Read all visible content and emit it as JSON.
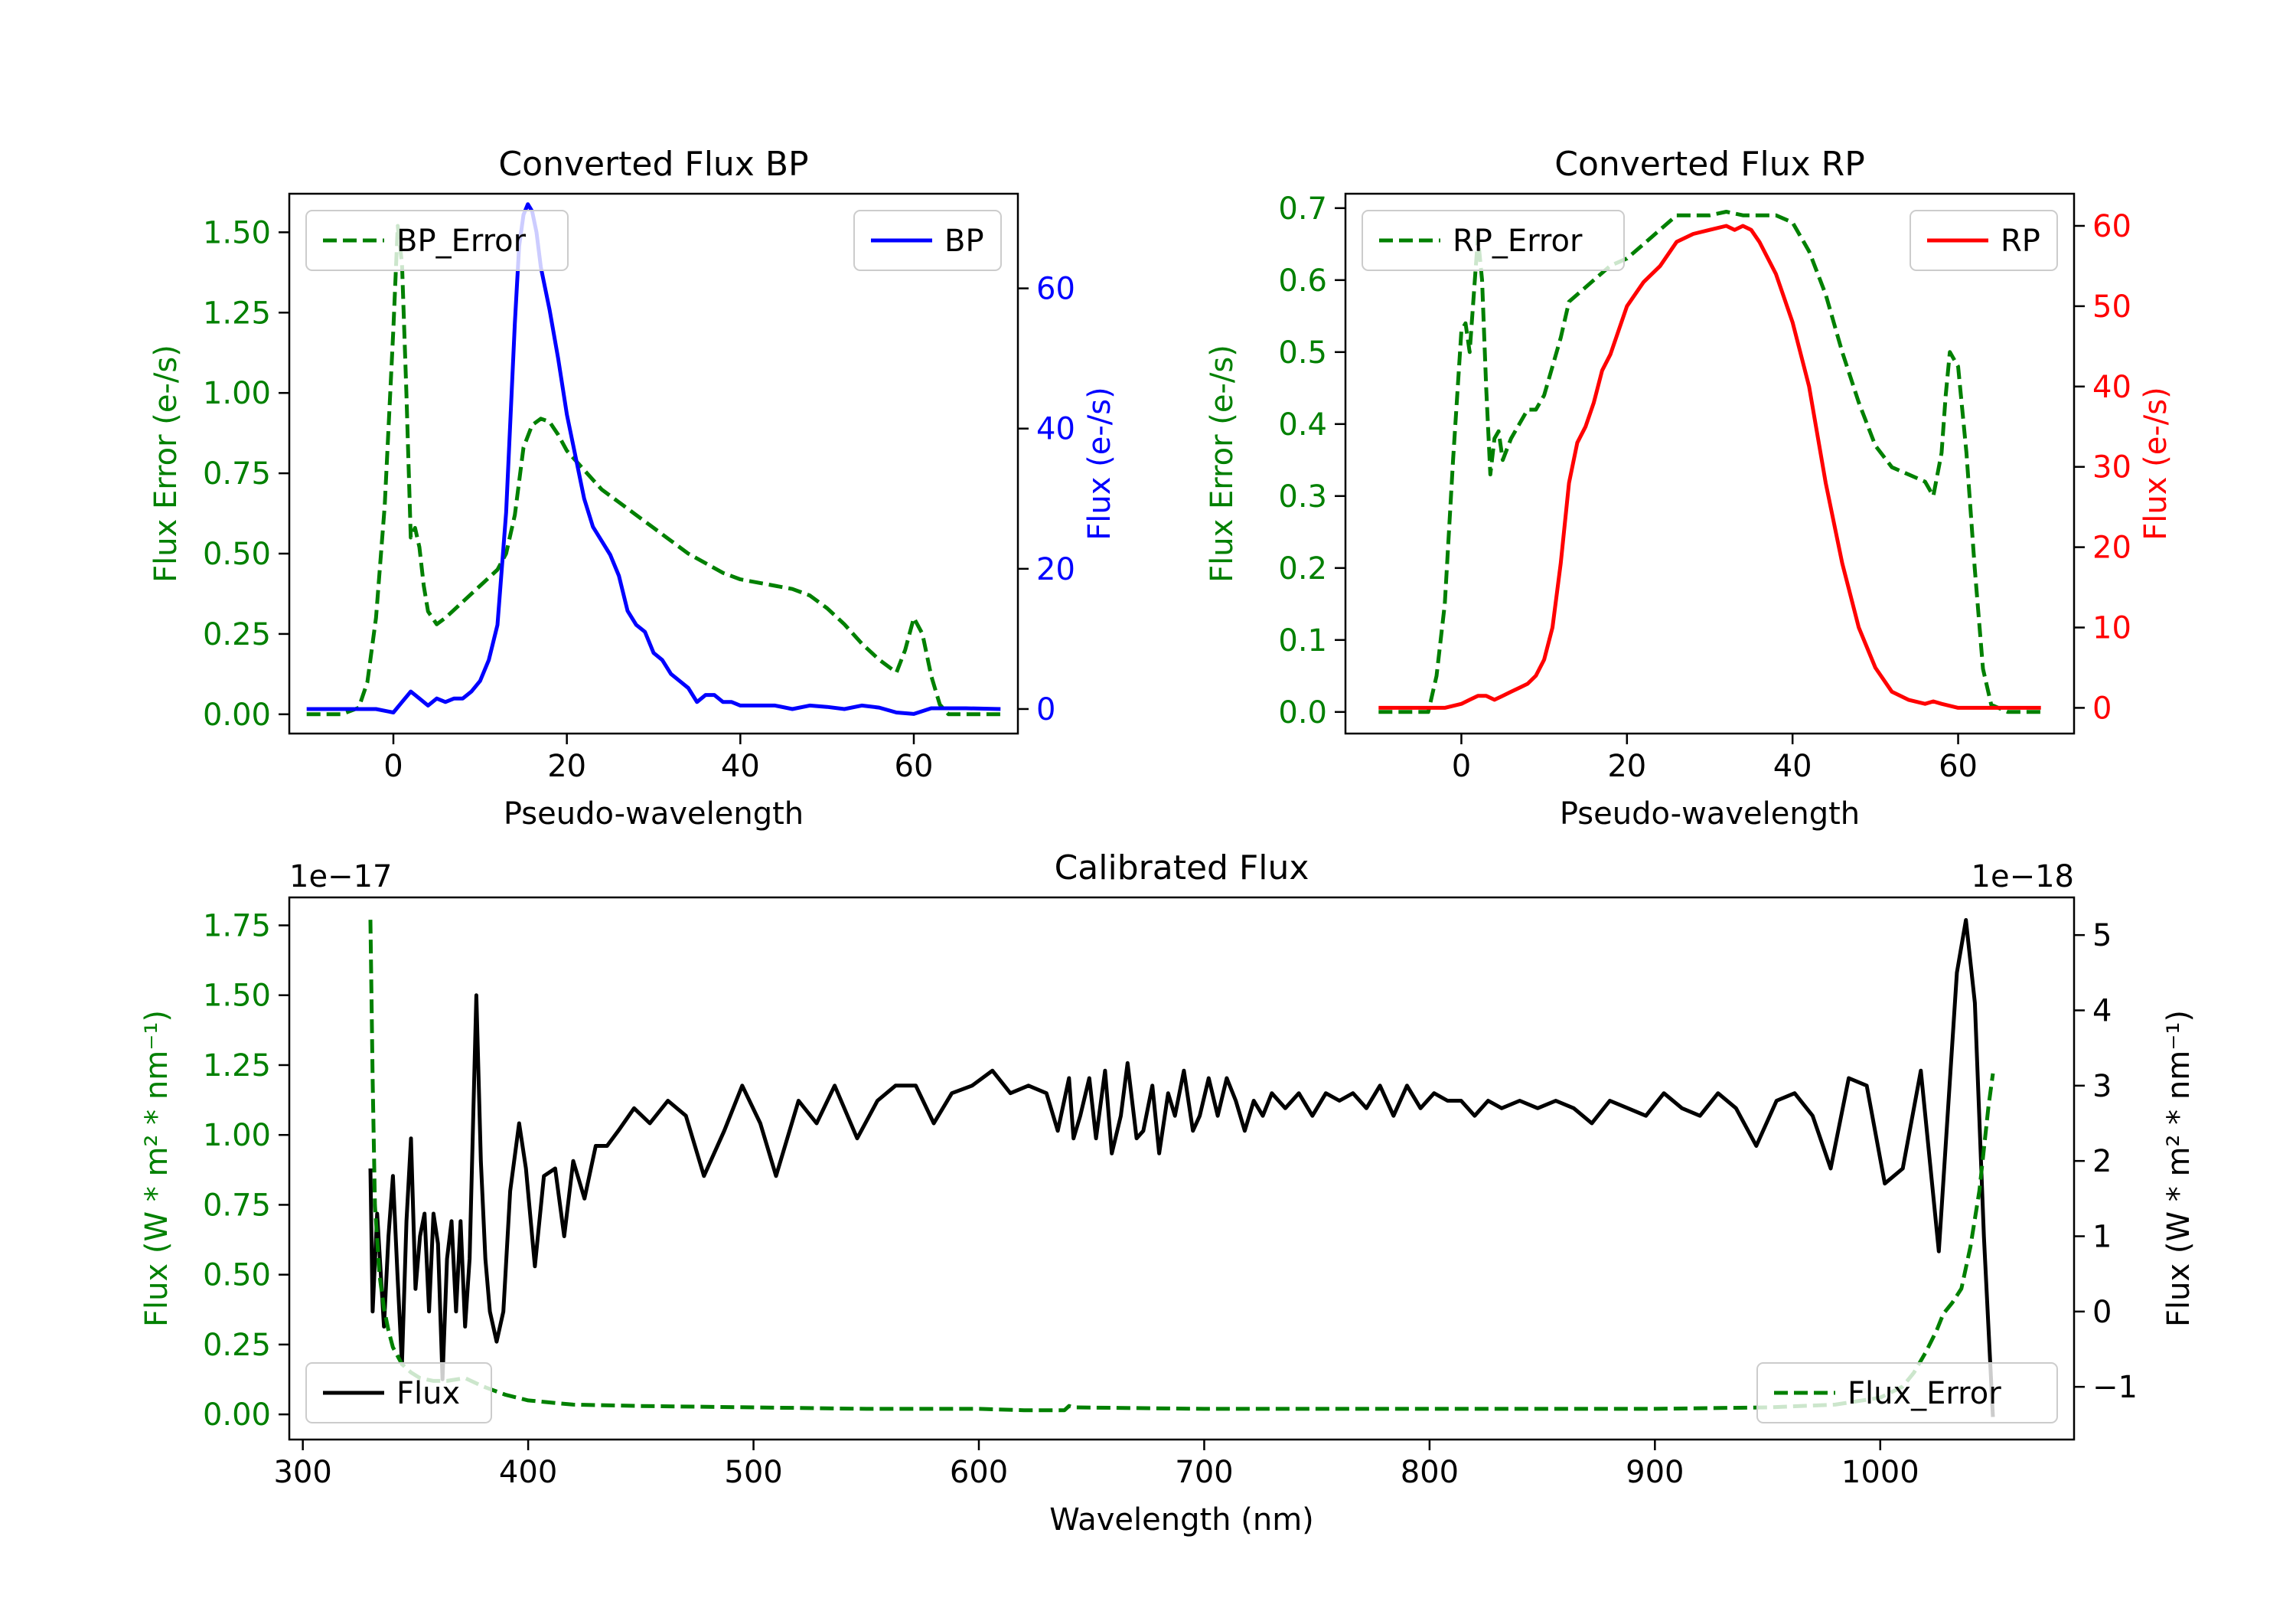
{
  "chart_data": [
    {
      "id": "bp",
      "type": "line",
      "title": "Converted Flux BP",
      "xlabel": "Pseudo-wavelength",
      "ylabel_left": "Flux Error (e-/s)",
      "ylabel_right": "Flux (e-/s)",
      "xlim": [
        -12,
        72
      ],
      "ylim_left": [
        -0.06,
        1.62
      ],
      "ylim_right": [
        -3.5,
        73.5
      ],
      "xticks": [
        0,
        20,
        40,
        60
      ],
      "yticks_left": [
        "0.00",
        "0.25",
        "0.50",
        "0.75",
        "1.00",
        "1.25",
        "1.50"
      ],
      "yticks_right": [
        0,
        20,
        40,
        60
      ],
      "colors": {
        "left": "#008000",
        "right": "#0000ff"
      },
      "series": [
        {
          "name": "BP_Error",
          "axis": "left",
          "color": "#008000",
          "style": "dashed",
          "x": [
            -10,
            -6,
            -4,
            -3,
            -2,
            -1,
            0,
            0.5,
            1,
            1.5,
            2,
            2.5,
            3,
            3.5,
            4,
            5,
            6,
            8,
            10,
            12,
            13,
            14,
            15,
            16,
            17,
            18,
            19,
            20,
            22,
            24,
            26,
            28,
            30,
            32,
            34,
            36,
            38,
            40,
            42,
            44,
            46,
            48,
            50,
            52,
            54,
            56,
            58,
            59,
            60,
            61,
            62,
            63,
            64,
            66,
            70
          ],
          "values": [
            0.0,
            0.0,
            0.02,
            0.1,
            0.3,
            0.65,
            1.2,
            1.52,
            1.4,
            1.0,
            0.55,
            0.58,
            0.52,
            0.4,
            0.32,
            0.28,
            0.3,
            0.35,
            0.4,
            0.45,
            0.5,
            0.62,
            0.83,
            0.9,
            0.92,
            0.91,
            0.87,
            0.82,
            0.76,
            0.7,
            0.66,
            0.62,
            0.58,
            0.54,
            0.5,
            0.47,
            0.44,
            0.42,
            0.41,
            0.4,
            0.39,
            0.37,
            0.33,
            0.28,
            0.22,
            0.17,
            0.13,
            0.2,
            0.3,
            0.25,
            0.12,
            0.03,
            0.0,
            0.0,
            0.0
          ]
        },
        {
          "name": "BP",
          "axis": "right",
          "color": "#0000ff",
          "style": "solid",
          "x": [
            -10,
            -4,
            -2,
            0,
            1,
            2,
            3,
            4,
            5,
            6,
            7,
            8,
            9,
            10,
            11,
            12,
            13,
            14,
            14.5,
            15,
            15.5,
            16,
            16.5,
            17,
            18,
            19,
            20,
            21,
            22,
            23,
            24,
            25,
            26,
            27,
            28,
            29,
            30,
            31,
            32,
            33,
            34,
            35,
            36,
            37,
            38,
            39,
            40,
            42,
            44,
            46,
            48,
            50,
            52,
            54,
            56,
            58,
            60,
            62,
            66,
            70
          ],
          "values": [
            0,
            0,
            0,
            -0.5,
            1,
            2.5,
            1.5,
            0.5,
            1.5,
            1,
            1.5,
            1.5,
            2.5,
            4,
            7,
            12,
            28,
            55,
            66,
            70.5,
            72,
            71,
            68,
            63,
            57,
            50,
            42,
            36,
            30,
            26,
            24,
            22,
            19,
            14,
            12,
            11,
            8,
            7,
            5,
            4,
            3,
            1,
            2,
            2,
            1,
            1,
            0.5,
            0.5,
            0.5,
            0,
            0.5,
            0.3,
            0,
            0.5,
            0.2,
            -0.5,
            -0.7,
            0.1,
            0.1,
            0
          ]
        }
      ],
      "legend": [
        {
          "label": "BP_Error",
          "position": "upper-left"
        },
        {
          "label": "BP",
          "position": "upper-right"
        }
      ]
    },
    {
      "id": "rp",
      "type": "line",
      "title": "Converted Flux RP",
      "xlabel": "Pseudo-wavelength",
      "ylabel_left": "Flux Error (e-/s)",
      "ylabel_right": "Flux (e-/s)",
      "xlim": [
        -14,
        74
      ],
      "ylim_left": [
        -0.03,
        0.72
      ],
      "ylim_right": [
        -3.2,
        64
      ],
      "xticks": [
        0,
        20,
        40,
        60
      ],
      "yticks_left": [
        "0.0",
        "0.1",
        "0.2",
        "0.3",
        "0.4",
        "0.5",
        "0.6",
        "0.7"
      ],
      "yticks_right": [
        0,
        10,
        20,
        30,
        40,
        50,
        60
      ],
      "colors": {
        "left": "#008000",
        "right": "#ff0000"
      },
      "series": [
        {
          "name": "RP_Error",
          "axis": "left",
          "color": "#008000",
          "style": "dashed",
          "x": [
            -10,
            -4,
            -3,
            -2,
            -1,
            0,
            0.5,
            1,
            1.5,
            2,
            2.5,
            3,
            3.5,
            4,
            4.5,
            5,
            6,
            7,
            8,
            9,
            10,
            11,
            12,
            13,
            14,
            16,
            18,
            20,
            22,
            24,
            26,
            28,
            30,
            32,
            34,
            36,
            38,
            40,
            42,
            44,
            46,
            48,
            50,
            52,
            54,
            56,
            57,
            58,
            58.5,
            59,
            60,
            61,
            62,
            63,
            64,
            66,
            70
          ],
          "values": [
            0.0,
            0.0,
            0.05,
            0.15,
            0.35,
            0.53,
            0.54,
            0.5,
            0.58,
            0.66,
            0.6,
            0.45,
            0.33,
            0.38,
            0.39,
            0.35,
            0.38,
            0.4,
            0.42,
            0.42,
            0.44,
            0.48,
            0.52,
            0.57,
            0.58,
            0.6,
            0.62,
            0.63,
            0.65,
            0.67,
            0.69,
            0.69,
            0.69,
            0.695,
            0.69,
            0.69,
            0.69,
            0.68,
            0.64,
            0.58,
            0.5,
            0.43,
            0.37,
            0.34,
            0.33,
            0.32,
            0.3,
            0.36,
            0.44,
            0.5,
            0.48,
            0.36,
            0.2,
            0.06,
            0.01,
            0.0,
            0.0
          ]
        },
        {
          "name": "RP",
          "axis": "right",
          "color": "#ff0000",
          "style": "solid",
          "x": [
            -10,
            -2,
            0,
            1,
            2,
            3,
            4,
            5,
            6,
            7,
            8,
            9,
            10,
            11,
            12,
            13,
            14,
            15,
            16,
            17,
            18,
            19,
            20,
            22,
            24,
            26,
            28,
            30,
            32,
            33,
            34,
            35,
            36,
            38,
            40,
            42,
            44,
            46,
            48,
            50,
            52,
            54,
            56,
            57,
            58,
            60,
            62,
            66,
            70
          ],
          "values": [
            0,
            0,
            0.5,
            1,
            1.5,
            1.5,
            1,
            1.5,
            2,
            2.5,
            3,
            4,
            6,
            10,
            18,
            28,
            33,
            35,
            38,
            42,
            44,
            47,
            50,
            53,
            55,
            58,
            59,
            59.5,
            60,
            59.5,
            60,
            59.5,
            58,
            54,
            48,
            40,
            28,
            18,
            10,
            5,
            2,
            1,
            0.5,
            0.8,
            0.5,
            0,
            0,
            0,
            0
          ]
        }
      ],
      "legend": [
        {
          "label": "RP_Error",
          "position": "upper-left"
        },
        {
          "label": "RP",
          "position": "upper-right"
        }
      ]
    },
    {
      "id": "cal",
      "type": "line",
      "title": "Calibrated Flux",
      "xlabel": "Wavelength (nm)",
      "ylabel_left": "Flux (W * m² * nm⁻¹)",
      "ylabel_right": "Flux (W * m² * nm⁻¹)",
      "offset_left": "1e−17",
      "offset_right": "1e−18",
      "xlim": [
        294,
        1086
      ],
      "ylim_left": [
        -0.09,
        1.85
      ],
      "ylim_right": [
        -1.7,
        5.5
      ],
      "xticks": [
        300,
        400,
        500,
        600,
        700,
        800,
        900,
        1000
      ],
      "yticks_left": [
        "0.00",
        "0.25",
        "0.50",
        "0.75",
        "1.00",
        "1.25",
        "1.50",
        "1.75"
      ],
      "yticks_right": [
        "−1",
        "0",
        "1",
        "2",
        "3",
        "4",
        "5"
      ],
      "colors": {
        "left": "#008000",
        "right": "#000000"
      },
      "series": [
        {
          "name": "Flux",
          "axis": "right",
          "color": "#000000",
          "style": "solid",
          "x": [
            330,
            331,
            333,
            336,
            338,
            340,
            342,
            344,
            346,
            348,
            350,
            352,
            354,
            356,
            358,
            360,
            362,
            364,
            366,
            368,
            370,
            372,
            374,
            377,
            379,
            381,
            383,
            386,
            389,
            392,
            396,
            399,
            403,
            407,
            412,
            416,
            420,
            425,
            430,
            435,
            440,
            447,
            454,
            462,
            470,
            478,
            487,
            495,
            503,
            510,
            520,
            528,
            536,
            546,
            555,
            563,
            572,
            580,
            588,
            597,
            606,
            614,
            622,
            630,
            635,
            640,
            642,
            645,
            649,
            652,
            656,
            659,
            663,
            666,
            670,
            673,
            677,
            680,
            684,
            687,
            691,
            695,
            698,
            702,
            706,
            710,
            714,
            718,
            722,
            726,
            730,
            736,
            742,
            748,
            754,
            760,
            766,
            772,
            778,
            784,
            790,
            796,
            802,
            808,
            814,
            820,
            826,
            832,
            840,
            848,
            856,
            864,
            872,
            880,
            888,
            896,
            904,
            912,
            920,
            928,
            936,
            945,
            954,
            962,
            970,
            978,
            986,
            994,
            1002,
            1010,
            1018,
            1026,
            1034,
            1038,
            1042,
            1046,
            1050
          ],
          "values": [
            1.9,
            0.0,
            1.3,
            -0.2,
            1.0,
            1.8,
            0.5,
            -0.7,
            1.2,
            2.3,
            0.3,
            1.0,
            1.3,
            0.0,
            1.3,
            0.9,
            -0.9,
            0.7,
            1.2,
            0.0,
            1.2,
            -0.2,
            0.7,
            4.2,
            2.0,
            0.7,
            0.0,
            -0.4,
            0.0,
            1.6,
            2.5,
            1.9,
            0.6,
            1.8,
            1.9,
            1.0,
            2.0,
            1.5,
            2.2,
            2.2,
            2.4,
            2.7,
            2.5,
            2.8,
            2.6,
            1.8,
            2.4,
            3.0,
            2.5,
            1.8,
            2.8,
            2.5,
            3.0,
            2.3,
            2.8,
            3.0,
            3.0,
            2.5,
            2.9,
            3.0,
            3.2,
            2.9,
            3.0,
            2.9,
            2.4,
            3.1,
            2.3,
            2.6,
            3.1,
            2.3,
            3.2,
            2.1,
            2.6,
            3.3,
            2.3,
            2.4,
            3.0,
            2.1,
            2.9,
            2.6,
            3.2,
            2.4,
            2.6,
            3.1,
            2.6,
            3.1,
            2.8,
            2.4,
            2.8,
            2.6,
            2.9,
            2.7,
            2.9,
            2.6,
            2.9,
            2.8,
            2.9,
            2.7,
            3.0,
            2.6,
            3.0,
            2.7,
            2.9,
            2.8,
            2.8,
            2.6,
            2.8,
            2.7,
            2.8,
            2.7,
            2.8,
            2.7,
            2.5,
            2.8,
            2.7,
            2.6,
            2.9,
            2.7,
            2.6,
            2.9,
            2.7,
            2.2,
            2.8,
            2.9,
            2.6,
            1.9,
            3.1,
            3.0,
            1.7,
            1.9,
            3.2,
            0.8,
            4.5,
            5.2,
            4.1,
            1.0,
            -1.4
          ]
        },
        {
          "name": "Flux_Error",
          "axis": "left",
          "color": "#008000",
          "style": "dashed",
          "x": [
            330,
            331,
            332,
            334,
            336,
            338,
            340,
            344,
            348,
            352,
            358,
            364,
            372,
            380,
            390,
            400,
            420,
            450,
            500,
            550,
            600,
            620,
            638,
            640,
            642,
            700,
            800,
            900,
            950,
            980,
            1000,
            1010,
            1015,
            1020,
            1025,
            1028,
            1032,
            1036,
            1040,
            1044,
            1048,
            1050
          ],
          "values": [
            1.77,
            1.2,
            0.75,
            0.5,
            0.38,
            0.3,
            0.24,
            0.18,
            0.15,
            0.13,
            0.12,
            0.12,
            0.13,
            0.1,
            0.07,
            0.05,
            0.035,
            0.03,
            0.025,
            0.02,
            0.02,
            0.015,
            0.015,
            0.03,
            0.025,
            0.02,
            0.02,
            0.02,
            0.025,
            0.035,
            0.06,
            0.1,
            0.15,
            0.22,
            0.3,
            0.36,
            0.4,
            0.45,
            0.6,
            0.8,
            1.1,
            1.22
          ]
        }
      ],
      "legend": [
        {
          "label": "Flux",
          "position": "lower-left"
        },
        {
          "label": "Flux_Error",
          "position": "lower-right"
        }
      ]
    }
  ]
}
